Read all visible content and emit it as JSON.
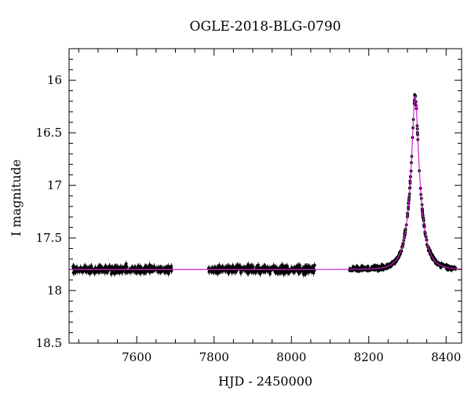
{
  "chart_data": {
    "type": "scatter",
    "title": "OGLE-2018-BLG-0790",
    "xlabel": "HJD - 2450000",
    "ylabel": "I magnitude",
    "xlim": [
      7425,
      8440
    ],
    "ylim": [
      18.5,
      15.7
    ],
    "y_inverted": true,
    "grid": false,
    "legend": "none",
    "x_ticks": [
      {
        "value": 7600,
        "label": "7600"
      },
      {
        "value": 7800,
        "label": "7800"
      },
      {
        "value": 8000,
        "label": "8000"
      },
      {
        "value": 8200,
        "label": "8200"
      },
      {
        "value": 8400,
        "label": "8400"
      }
    ],
    "y_ticks": [
      {
        "value": 16,
        "label": "16"
      },
      {
        "value": 16.5,
        "label": "16.5"
      },
      {
        "value": 17,
        "label": "17"
      },
      {
        "value": 17.5,
        "label": "17.5"
      },
      {
        "value": 18,
        "label": "18"
      },
      {
        "value": 18.5,
        "label": "18.5"
      }
    ],
    "series": [
      {
        "kind": "observations",
        "color": "#000000",
        "marker": "filled-circle-with-errorbars",
        "segments": [
          {
            "x_start": 7435,
            "x_end": 7690,
            "baseline_mag": 17.8,
            "scatter_mag": 0.03,
            "error_mag": 0.03
          },
          {
            "x_start": 7785,
            "x_end": 8060,
            "baseline_mag": 17.8,
            "scatter_mag": 0.03,
            "error_mag": 0.03
          },
          {
            "x_start": 8150,
            "x_end": 8425,
            "baseline_mag": 17.8,
            "scatter_mag": 0.02,
            "error_mag": 0.02
          }
        ]
      },
      {
        "kind": "model",
        "color": "#d020d0",
        "model": {
          "baseline_mag": 17.8,
          "peak_mag": 16.15,
          "t0": 8320,
          "tE": 28
        }
      }
    ]
  }
}
